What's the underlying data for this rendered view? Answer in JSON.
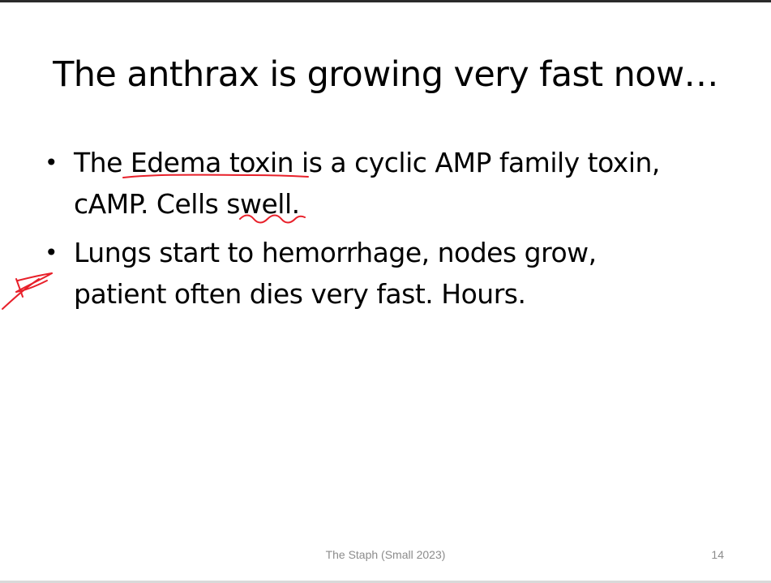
{
  "slide": {
    "title": "The anthrax is growing very fast now…",
    "bullets": [
      {
        "line1_pre": "The ",
        "line1_underlined": "Edema toxin",
        "line1_post": " is a cyclic AMP family toxin,",
        "line2_pre": "cAMP. Cells ",
        "line2_underlined": "swell",
        "line2_post": "."
      },
      {
        "line1": "Lungs start to hemorrhage, nodes grow,",
        "line2": "patient often dies very fast. Hours."
      }
    ],
    "bullet_symbol": "•",
    "footer": "The Staph (Small 2023)",
    "page_number": "14"
  },
  "colors": {
    "ink": "#e8202a",
    "footer_text": "#8c8c8c",
    "title_text": "#000000"
  }
}
